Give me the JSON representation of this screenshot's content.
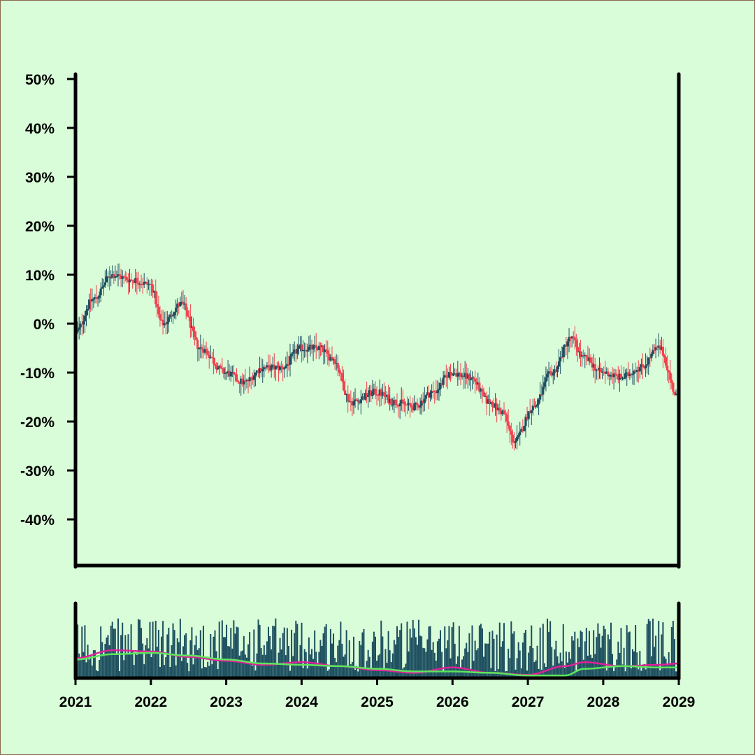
{
  "chart_data": {
    "type": "candlestick",
    "title": "",
    "xlabel": "",
    "ylabel": "",
    "ylim": [
      -50,
      50
    ],
    "yticks": [
      50,
      40,
      30,
      20,
      10,
      0,
      -10,
      -20,
      -30,
      -40
    ],
    "ytick_labels": [
      "50%",
      "40%",
      "30%",
      "20%",
      "10%",
      "0%",
      "-10%",
      "-20%",
      "-30%",
      "-40%"
    ],
    "xlim": [
      "2021-01-01",
      "2029-01-01"
    ],
    "xticks": [
      "2021",
      "2022",
      "2023",
      "2024",
      "2025",
      "2026",
      "2027",
      "2028",
      "2029"
    ],
    "grid": false,
    "colors": {
      "up": "#1d4f5f",
      "down": "#f2424f",
      "background": "#d9fcd9",
      "ma_fast": "#e0209a",
      "ma_slow": "#5ce65c",
      "volume": "#1d4f5f"
    },
    "price_path": {
      "x": [
        "2021-01-01",
        "2021-04-01",
        "2021-07-01",
        "2021-10-01",
        "2022-01-01",
        "2022-03-01",
        "2022-06-01",
        "2022-09-01",
        "2023-01-01",
        "2023-04-01",
        "2023-07-01",
        "2023-10-01",
        "2024-01-01",
        "2024-04-01",
        "2024-06-01",
        "2024-09-01",
        "2025-01-01",
        "2025-04-01",
        "2025-07-01",
        "2025-10-01",
        "2026-01-01",
        "2026-04-01",
        "2026-07-01",
        "2026-09-01",
        "2026-11-01",
        "2027-02-01",
        "2027-05-01",
        "2027-08-01",
        "2027-10-01",
        "2028-01-01",
        "2028-04-01",
        "2028-07-01",
        "2028-10-01",
        "2029-01-01"
      ],
      "close": [
        -2,
        5,
        10,
        9,
        8,
        0,
        4,
        -5,
        -10,
        -12,
        -9,
        -9,
        -5,
        -5,
        -7,
        -16,
        -14,
        -16,
        -17,
        -14,
        -10,
        -11,
        -16,
        -18,
        -24,
        -17,
        -10,
        -3,
        -7,
        -10,
        -11,
        -9,
        -5,
        -15
      ]
    },
    "volume": {
      "ylim": [
        0,
        100
      ],
      "ma_fast": {
        "x": [
          "2021-01-01",
          "2021-07-01",
          "2022-01-01",
          "2022-07-01",
          "2023-01-01",
          "2023-07-01",
          "2024-01-01",
          "2024-07-01",
          "2025-01-01",
          "2025-07-01",
          "2026-01-01",
          "2026-07-01",
          "2027-01-01",
          "2027-07-01",
          "2027-10-01",
          "2028-04-01",
          "2028-10-01",
          "2029-01-01"
        ],
        "values": [
          30,
          42,
          40,
          32,
          26,
          20,
          24,
          18,
          12,
          8,
          16,
          8,
          5,
          18,
          24,
          18,
          20,
          22
        ]
      },
      "ma_slow": {
        "x": [
          "2021-01-01",
          "2021-07-01",
          "2022-01-01",
          "2022-07-01",
          "2023-01-01",
          "2023-07-01",
          "2024-01-01",
          "2024-07-01",
          "2025-01-01",
          "2025-07-01",
          "2026-01-01",
          "2026-07-01",
          "2027-01-01",
          "2027-07-01",
          "2027-10-01",
          "2028-04-01",
          "2028-10-01",
          "2029-01-01"
        ],
        "values": [
          28,
          36,
          38,
          34,
          28,
          22,
          20,
          18,
          14,
          10,
          10,
          8,
          4,
          4,
          14,
          18,
          16,
          16
        ]
      }
    }
  }
}
